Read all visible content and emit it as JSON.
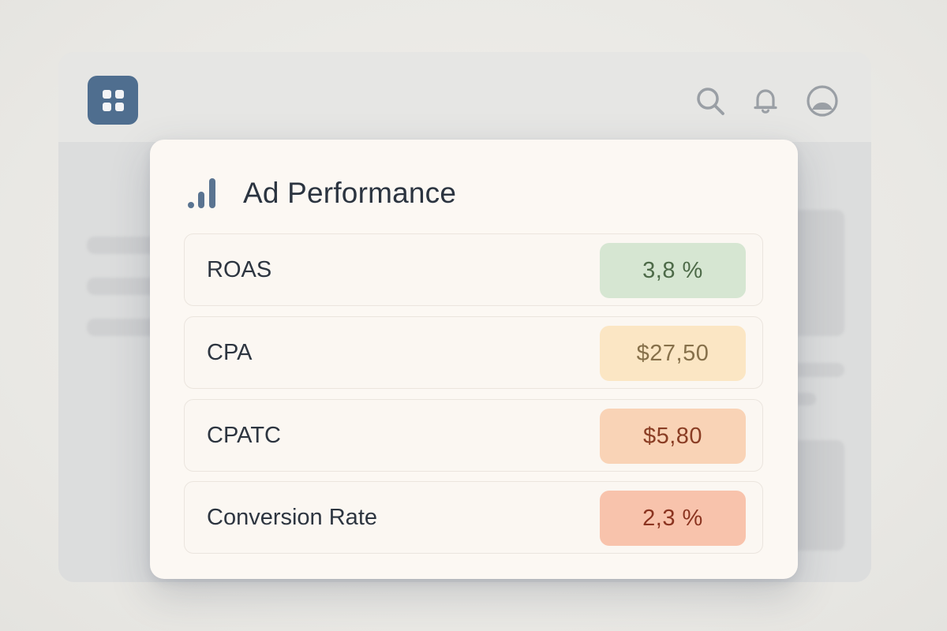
{
  "card": {
    "title": "Ad Performance",
    "icon": "bar-chart-icon"
  },
  "header_icons": [
    "apps-grid-icon",
    "search-icon",
    "bell-icon",
    "profile-icon"
  ],
  "metrics": [
    {
      "label": "ROAS",
      "value": "3,8 %",
      "bg": "#d6e6d2",
      "color": "#4d6a48"
    },
    {
      "label": "CPA",
      "value": "$27,50",
      "bg": "#fbe6c4",
      "color": "#86704a"
    },
    {
      "label": "CPATC",
      "value": "$5,80",
      "bg": "#f9d3b6",
      "color": "#8a3d24"
    },
    {
      "label": "Conversion Rate",
      "value": "2,3 %",
      "bg": "#f8c3ac",
      "color": "#8b3420"
    }
  ],
  "colors": {
    "accent": "#4f6e8f",
    "card_bg": "#fcf8f3"
  }
}
